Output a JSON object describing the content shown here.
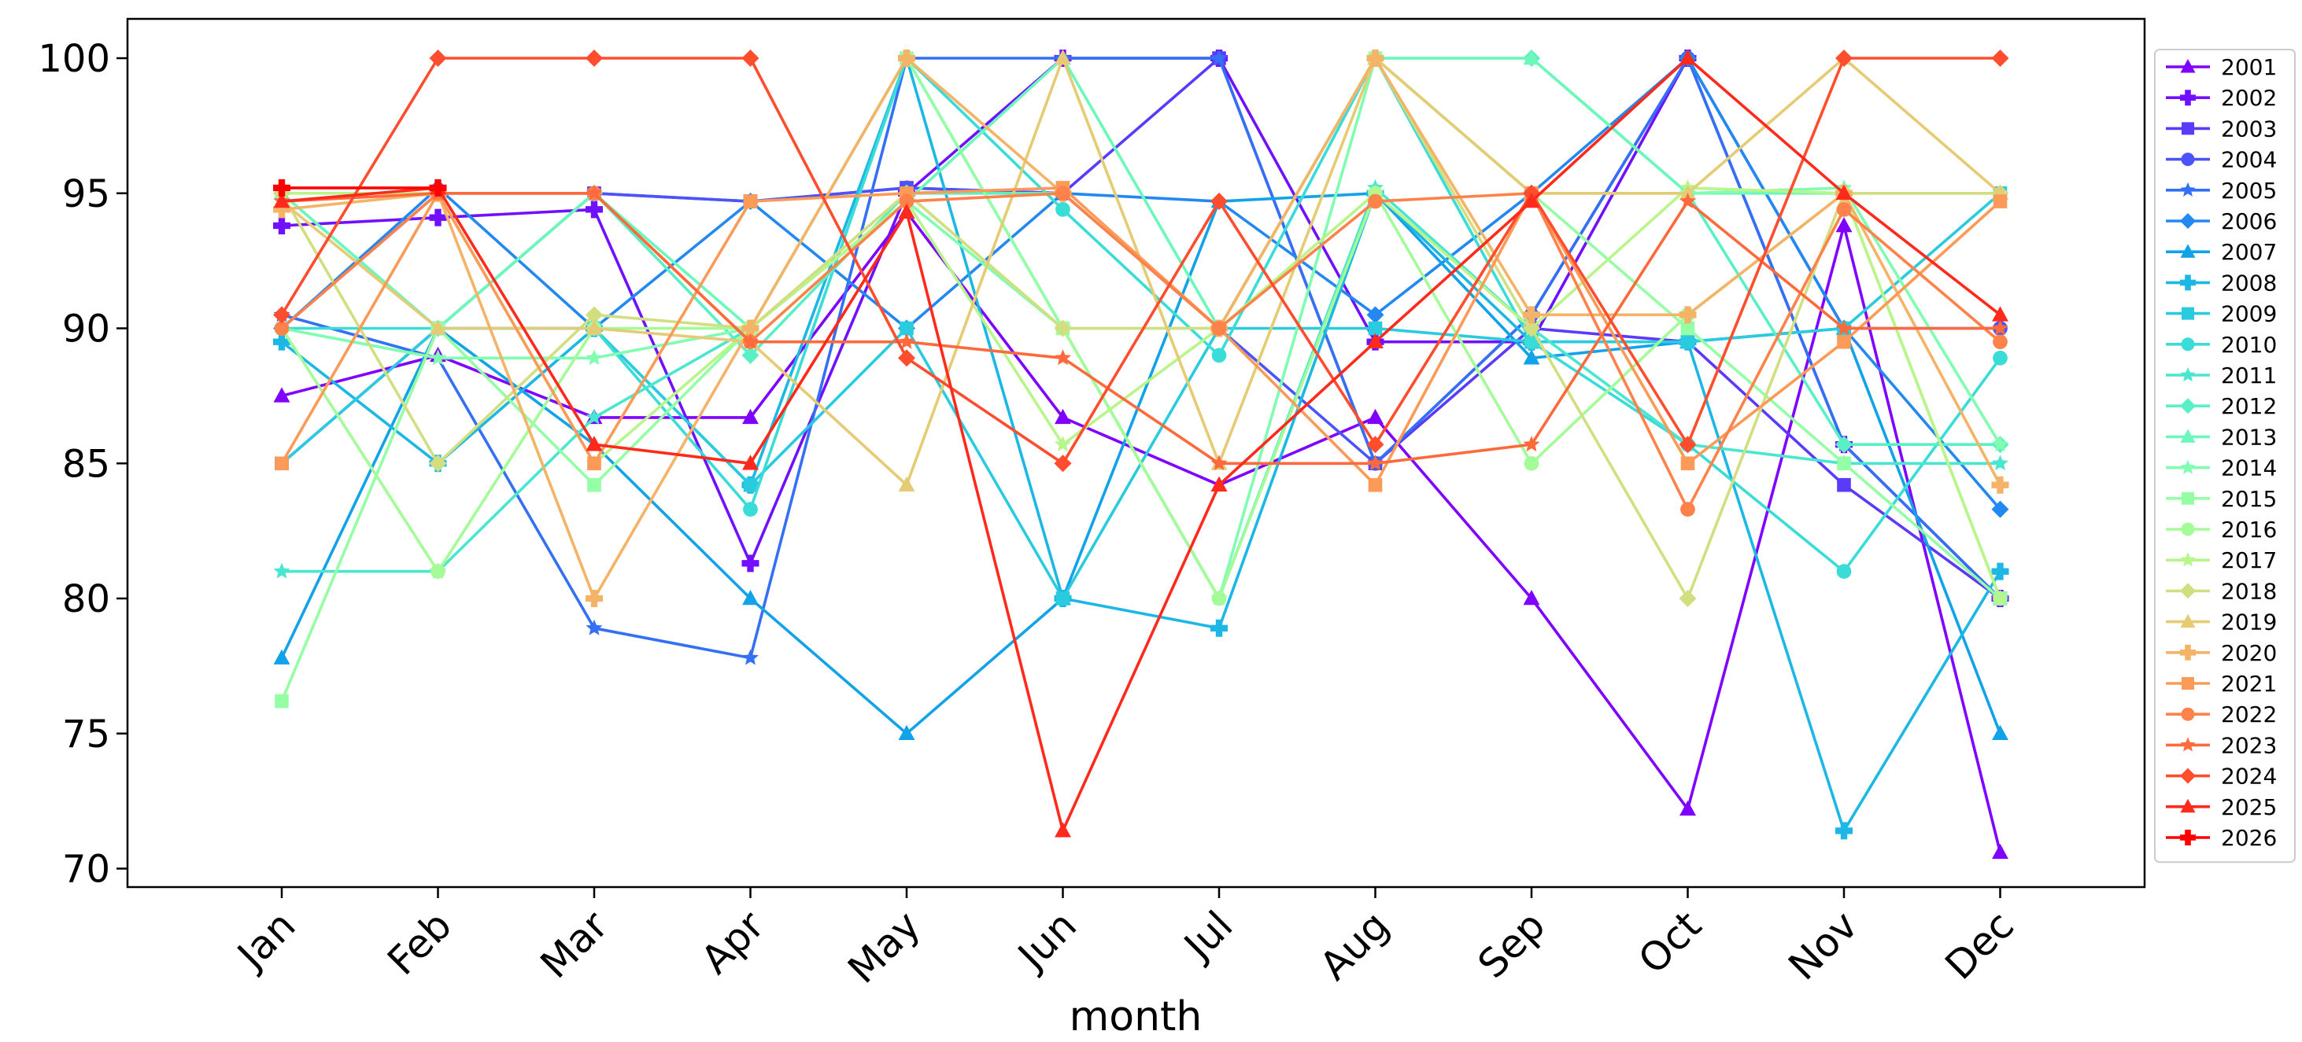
{
  "chart_data": {
    "type": "line",
    "title": "",
    "xlabel": "month",
    "ylabel": "",
    "categories": [
      "Jan",
      "Feb",
      "Mar",
      "Apr",
      "May",
      "Jun",
      "Jul",
      "Aug",
      "Sep",
      "Oct",
      "Nov",
      "Dec"
    ],
    "ylim": [
      69,
      101.5
    ],
    "yticks": [
      70,
      75,
      80,
      85,
      90,
      95,
      100
    ],
    "grid": false,
    "legend_position": "right",
    "series": [
      {
        "name": "2001",
        "color": "#8000ff",
        "marker": "triangle",
        "values": [
          87.5,
          89.0,
          86.7,
          86.7,
          94.3,
          86.7,
          84.2,
          86.7,
          80.0,
          72.2,
          93.8,
          70.6
        ]
      },
      {
        "name": "2002",
        "color": "#7010ff",
        "marker": "plus",
        "values": [
          93.8,
          94.1,
          94.4,
          81.3,
          95.0,
          100.0,
          100.0,
          89.5,
          89.5,
          100.0,
          85.7,
          80.0
        ]
      },
      {
        "name": "2003",
        "color": "#5a3bfc",
        "marker": "square",
        "values": [
          85.0,
          90.0,
          95.0,
          94.7,
          95.2,
          95.0,
          100.0,
          85.0,
          90.0,
          89.5,
          84.2,
          80.0
        ]
      },
      {
        "name": "2004",
        "color": "#4a54f9",
        "marker": "circle",
        "values": [
          90.0,
          95.0,
          95.0,
          94.7,
          95.2,
          95.0,
          90.0,
          85.0,
          90.5,
          100.0,
          90.0,
          90.0
        ]
      },
      {
        "name": "2005",
        "color": "#3470f4",
        "marker": "star",
        "values": [
          90.5,
          88.9,
          78.9,
          77.8,
          100.0,
          100.0,
          100.0,
          85.0,
          90.5,
          100.0,
          85.7,
          80.0
        ]
      },
      {
        "name": "2006",
        "color": "#2388ef",
        "marker": "diamond",
        "values": [
          90.0,
          95.2,
          90.0,
          94.7,
          90.0,
          95.0,
          94.7,
          90.5,
          95.0,
          100.0,
          90.0,
          83.3
        ]
      },
      {
        "name": "2007",
        "color": "#12a2e8",
        "marker": "triangle",
        "values": [
          77.8,
          90.0,
          85.7,
          80.0,
          75.0,
          80.0,
          94.7,
          95.0,
          88.9,
          89.5,
          90.0,
          75.0
        ]
      },
      {
        "name": "2008",
        "color": "#1cb7e4",
        "marker": "plus",
        "values": [
          89.5,
          85.0,
          90.0,
          84.2,
          100.0,
          80.0,
          78.9,
          95.0,
          89.5,
          89.5,
          71.4,
          81.0
        ]
      },
      {
        "name": "2009",
        "color": "#2acbde",
        "marker": "square",
        "values": [
          85.0,
          90.0,
          90.0,
          84.2,
          90.0,
          80.0,
          90.0,
          90.0,
          89.5,
          89.5,
          90.0,
          95.0
        ]
      },
      {
        "name": "2010",
        "color": "#3adcd8",
        "marker": "circle",
        "values": [
          90.0,
          90.0,
          90.0,
          83.3,
          100.0,
          94.4,
          89.0,
          100.0,
          89.5,
          85.7,
          81.0,
          88.9
        ]
      },
      {
        "name": "2011",
        "color": "#4ae6cf",
        "marker": "star",
        "values": [
          81.0,
          81.0,
          86.7,
          90.0,
          100.0,
          90.0,
          80.0,
          95.2,
          90.0,
          85.7,
          85.0,
          85.0
        ]
      },
      {
        "name": "2012",
        "color": "#5af0c6",
        "marker": "diamond",
        "values": [
          95.0,
          90.0,
          95.0,
          89.0,
          95.0,
          95.0,
          90.0,
          100.0,
          100.0,
          95.0,
          85.7,
          85.7
        ]
      },
      {
        "name": "2013",
        "color": "#6cf8bb",
        "marker": "triangle",
        "values": [
          95.0,
          90.0,
          95.0,
          90.0,
          94.7,
          100.0,
          90.0,
          100.0,
          100.0,
          95.0,
          95.0,
          95.0
        ]
      },
      {
        "name": "2014",
        "color": "#80fdb0",
        "marker": "star",
        "values": [
          90.0,
          88.9,
          88.9,
          90.0,
          94.7,
          90.0,
          80.0,
          100.0,
          95.0,
          95.0,
          95.2,
          85.7
        ]
      },
      {
        "name": "2015",
        "color": "#94ffa4",
        "marker": "square",
        "values": [
          76.2,
          90.0,
          84.2,
          90.0,
          100.0,
          90.0,
          90.0,
          100.0,
          95.0,
          90.0,
          85.0,
          80.0
        ]
      },
      {
        "name": "2016",
        "color": "#a4fc98",
        "marker": "circle",
        "values": [
          90.0,
          81.0,
          90.0,
          90.0,
          95.0,
          90.0,
          80.0,
          95.0,
          85.0,
          90.5,
          95.0,
          80.0
        ]
      },
      {
        "name": "2017",
        "color": "#b8f58b",
        "marker": "star",
        "values": [
          95.0,
          95.0,
          85.0,
          90.0,
          94.7,
          85.7,
          90.0,
          95.0,
          90.0,
          95.2,
          95.0,
          80.0
        ]
      },
      {
        "name": "2018",
        "color": "#d2df80",
        "marker": "diamond",
        "values": [
          95.0,
          85.0,
          90.5,
          90.0,
          95.0,
          90.0,
          90.0,
          100.0,
          90.0,
          80.0,
          95.0,
          95.0
        ]
      },
      {
        "name": "2019",
        "color": "#e5cb74",
        "marker": "triangle",
        "values": [
          94.7,
          90.0,
          90.0,
          89.5,
          84.2,
          100.0,
          85.0,
          100.0,
          95.0,
          95.0,
          100.0,
          95.0
        ]
      },
      {
        "name": "2020",
        "color": "#f4b366",
        "marker": "plus",
        "values": [
          94.4,
          95.0,
          80.0,
          90.0,
          100.0,
          95.0,
          90.0,
          100.0,
          90.5,
          90.5,
          95.0,
          84.2
        ]
      },
      {
        "name": "2021",
        "color": "#fc9a58",
        "marker": "square",
        "values": [
          85.0,
          95.0,
          85.0,
          94.7,
          95.0,
          95.2,
          90.0,
          84.2,
          95.0,
          85.0,
          89.5,
          94.7
        ]
      },
      {
        "name": "2022",
        "color": "#ff824a",
        "marker": "circle",
        "values": [
          90.0,
          95.0,
          95.0,
          89.5,
          94.7,
          95.0,
          90.0,
          94.7,
          95.0,
          83.3,
          94.4,
          89.5
        ]
      },
      {
        "name": "2023",
        "color": "#ff6a3c",
        "marker": "star",
        "values": [
          94.7,
          95.0,
          95.0,
          89.5,
          89.5,
          88.9,
          85.0,
          85.0,
          85.7,
          94.7,
          90.0,
          90.0
        ]
      },
      {
        "name": "2024",
        "color": "#ff4d2e",
        "marker": "diamond",
        "values": [
          90.5,
          100.0,
          100.0,
          100.0,
          88.9,
          85.0,
          94.7,
          85.7,
          95.0,
          85.7,
          100.0,
          100.0
        ]
      },
      {
        "name": "2025",
        "color": "#ff2a1c",
        "marker": "triangle",
        "values": [
          94.7,
          95.2,
          85.7,
          85.0,
          94.3,
          71.4,
          84.2,
          89.5,
          94.7,
          100.0,
          95.0,
          90.5
        ]
      },
      {
        "name": "2026",
        "color": "#ff0000",
        "marker": "plus",
        "values": [
          95.2,
          95.2,
          null,
          null,
          null,
          null,
          null,
          null,
          null,
          null,
          null,
          null
        ]
      }
    ]
  }
}
